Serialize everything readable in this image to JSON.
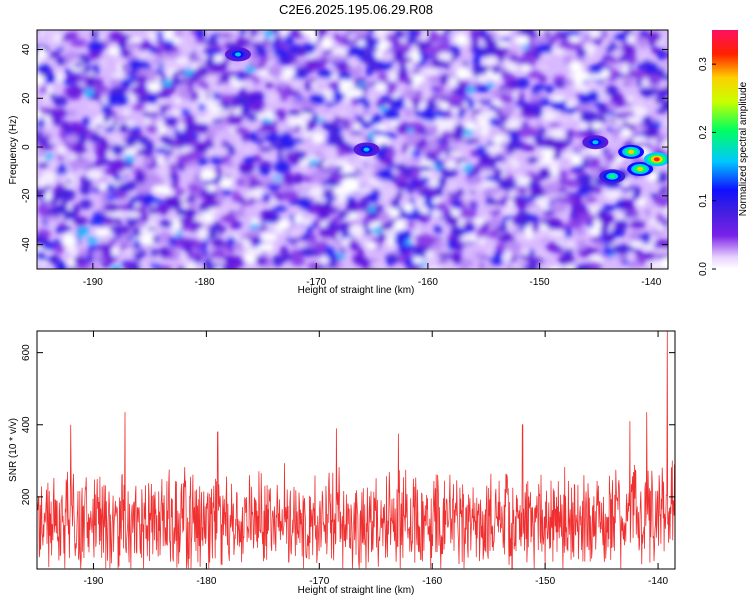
{
  "title": "C2E6.2025.195.06.29.R08",
  "chart_data": [
    {
      "type": "heatmap",
      "xlabel": "Height of straight line (km)",
      "ylabel": "Frequency (Hz)",
      "xlim": [
        -195,
        -138.5
      ],
      "ylim": [
        -50,
        48
      ],
      "x_ticks": [
        -190,
        -180,
        -170,
        -160,
        -150,
        -140
      ],
      "y_ticks": [
        -40,
        -20,
        0,
        20,
        40
      ],
      "colorbar": {
        "label": "Normalized spectral amplitude",
        "range": [
          0,
          0.35
        ],
        "ticks": [
          0.0,
          0.1,
          0.2,
          0.3
        ],
        "colors": [
          "#ffffff",
          "#e8d0ff",
          "#7a22e8",
          "#3c1ee0",
          "#1010ff",
          "#00c8ff",
          "#00ff60",
          "#c8ff00",
          "#ffd000",
          "#ff2000",
          "#ff1060"
        ]
      },
      "hotspots": [
        {
          "x": -143.5,
          "y": -12,
          "value": 0.16
        },
        {
          "x": -141.8,
          "y": -2,
          "value": 0.2
        },
        {
          "x": -141.0,
          "y": -9,
          "value": 0.22
        },
        {
          "x": -139.5,
          "y": -5,
          "value": 0.28
        },
        {
          "x": -145.0,
          "y": 2,
          "value": 0.13
        },
        {
          "x": -165.5,
          "y": -1,
          "value": 0.12
        },
        {
          "x": -177.0,
          "y": 38,
          "value": 0.1
        }
      ]
    },
    {
      "type": "line",
      "xlabel": "Height of straight line (km)",
      "ylabel": "SNR (10 * v/v)",
      "xlim": [
        -195,
        -138.5
      ],
      "ylim": [
        0,
        660
      ],
      "x_ticks": [
        -190,
        -180,
        -170,
        -160,
        -150,
        -140
      ],
      "y_ticks": [
        200,
        400,
        600
      ],
      "series": [
        {
          "color": "#f03030",
          "baseline": 130,
          "spikes": [
            {
              "x": -187.2,
              "y": 435
            },
            {
              "x": -192.0,
              "y": 400
            },
            {
              "x": -179.0,
              "y": 380
            },
            {
              "x": -168.5,
              "y": 390
            },
            {
              "x": -163.0,
              "y": 375
            },
            {
              "x": -152.0,
              "y": 400
            },
            {
              "x": -142.5,
              "y": 410
            },
            {
              "x": -141.0,
              "y": 435
            },
            {
              "x": -139.2,
              "y": 660
            }
          ]
        }
      ]
    }
  ]
}
